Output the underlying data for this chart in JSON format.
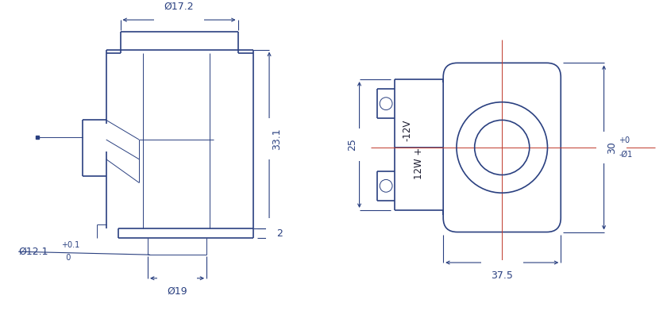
{
  "bg_color": "#ffffff",
  "line_color": "#2a4080",
  "dim_color": "#2a4080",
  "text_color": "#1a1a2e",
  "lw_main": 1.2,
  "lw_thin": 0.7,
  "lw_dim": 0.8,
  "annotations": {
    "d172": "Ø17.2",
    "d19": "Ø19",
    "d121": "Ø12.1",
    "dim_331": "33.1",
    "dim_2": "2",
    "dim_25": "25",
    "dim_375": "37.5",
    "dim_30": "30",
    "label_12v": "-12V",
    "label_12w": "12W +",
    "font_size": 9,
    "font_size_small": 7
  }
}
